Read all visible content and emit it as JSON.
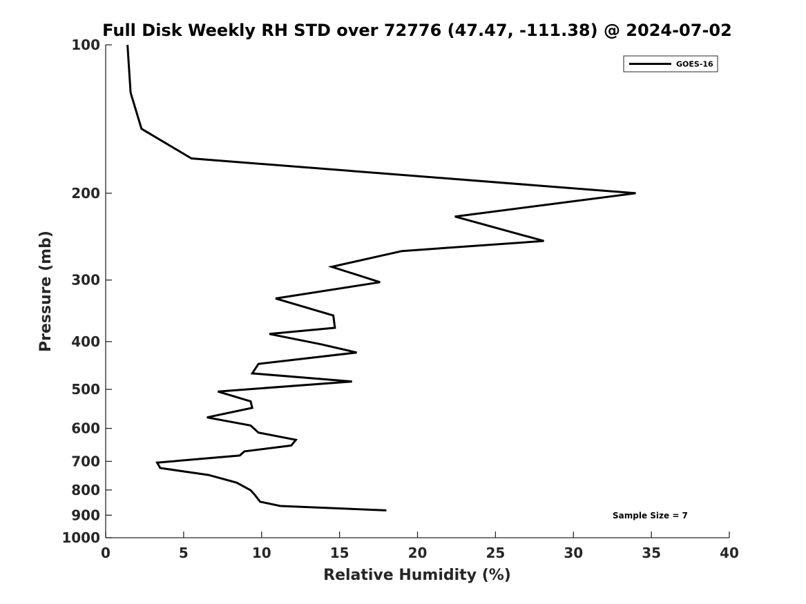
{
  "chart_data": {
    "type": "line",
    "title": "Full Disk Weekly RH STD over 72776 (47.47, -111.38) @ 2024-07-02",
    "xlabel": "Relative Humidity (%)",
    "ylabel": "Pressure (mb)",
    "xlim": [
      0,
      40
    ],
    "ylim": [
      100,
      1000
    ],
    "y_scale": "log",
    "y_reversed": true,
    "grid": false,
    "x_ticks": [
      0,
      5,
      10,
      15,
      20,
      25,
      30,
      35,
      40
    ],
    "y_ticks": [
      100,
      200,
      300,
      400,
      500,
      600,
      700,
      800,
      900,
      1000
    ],
    "legend": {
      "position": "top-right",
      "entries": [
        "GOES-16"
      ]
    },
    "annotation": "Sample Size = 7",
    "series": [
      {
        "name": "GOES-16",
        "color": "#000000",
        "points": [
          [
            1.4,
            100
          ],
          [
            1.6,
            125
          ],
          [
            2.3,
            148
          ],
          [
            5.5,
            170
          ],
          [
            34.0,
            200
          ],
          [
            22.4,
            223
          ],
          [
            28.1,
            250
          ],
          [
            19.0,
            262
          ],
          [
            14.5,
            282
          ],
          [
            17.6,
            303
          ],
          [
            10.9,
            327
          ],
          [
            14.6,
            354
          ],
          [
            14.7,
            375
          ],
          [
            10.5,
            386
          ],
          [
            13.8,
            405
          ],
          [
            16.1,
            421
          ],
          [
            9.8,
            444
          ],
          [
            9.4,
            464
          ],
          [
            15.8,
            482
          ],
          [
            7.2,
            505
          ],
          [
            9.3,
            529
          ],
          [
            9.4,
            545
          ],
          [
            6.5,
            570
          ],
          [
            9.3,
            592
          ],
          [
            9.8,
            612
          ],
          [
            12.2,
            633
          ],
          [
            11.9,
            650
          ],
          [
            8.9,
            668
          ],
          [
            8.6,
            681
          ],
          [
            3.3,
            704
          ],
          [
            3.5,
            722
          ],
          [
            6.6,
            746
          ],
          [
            8.4,
            773
          ],
          [
            9.3,
            801
          ],
          [
            9.6,
            821
          ],
          [
            9.9,
            845
          ],
          [
            11.2,
            862
          ],
          [
            18.0,
            880
          ]
        ]
      }
    ]
  }
}
